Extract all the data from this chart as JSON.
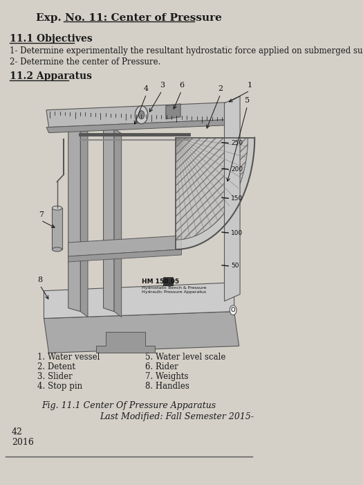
{
  "title": "Exp. No. 11: Center of Pressure",
  "section1_header": "11.1 Objectives",
  "obj1": "1- Determine experimentally the resultant hydrostatic force applied on submerged surface.",
  "obj2": "2- Determine the center of Pressure.",
  "section2_header": "11.2 Apparatus",
  "labels_left": [
    "1. Water vessel",
    "2. Detent",
    "3. Slider",
    "4. Stop pin"
  ],
  "labels_right": [
    "5. Water level scale",
    "6. Rider",
    "7. Weights",
    "8. Handles"
  ],
  "fig_caption": "Fig. 11.1 Center Of Pressure Apparatus",
  "last_modified": "Last Modified: Fall Semester 2015-",
  "page_number": "42",
  "year": "2016",
  "bg_color": "#d4d0c8",
  "text_color": "#1a1a1a",
  "apparatus_label": "HM 150.05"
}
